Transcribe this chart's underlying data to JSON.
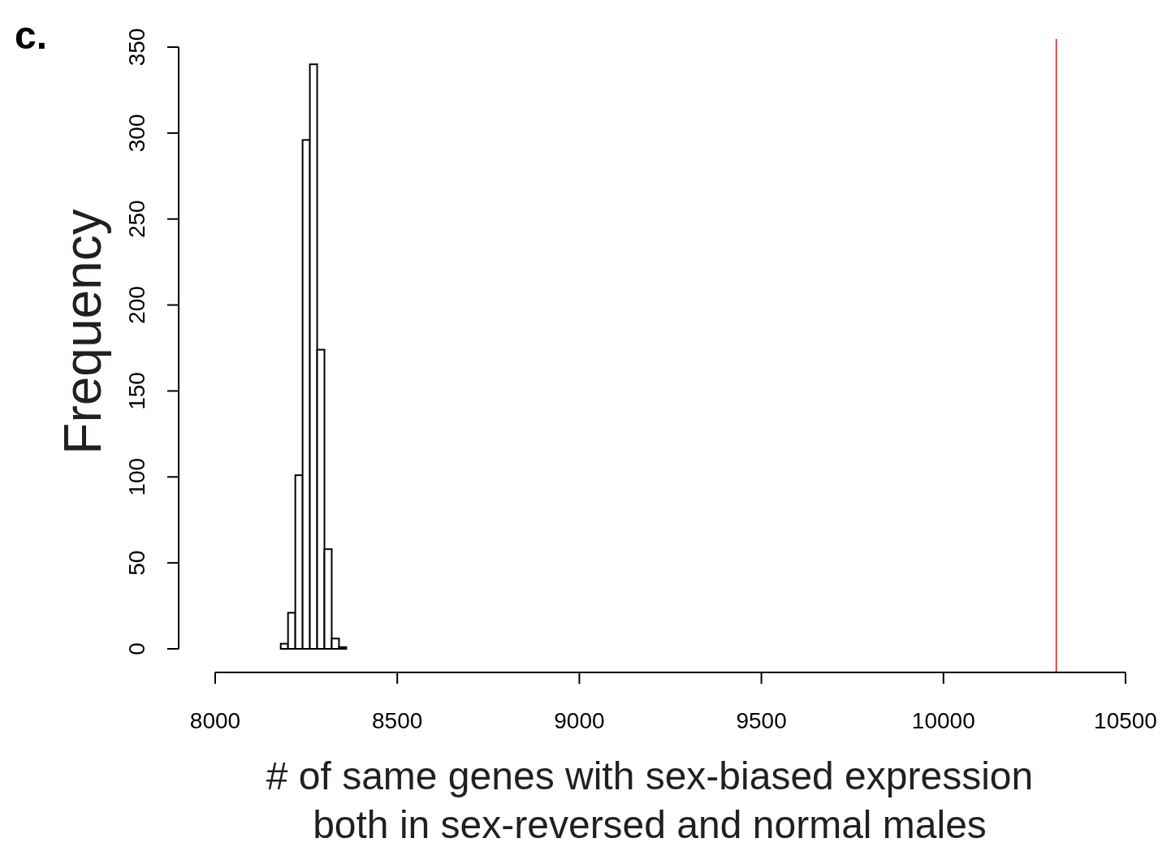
{
  "chart_data": {
    "type": "histogram",
    "title": "c.",
    "xlabel": "# of same genes with sex-biased expression\nboth in sex-reversed and normal males",
    "ylabel": "Frequency",
    "bins": [
      8180,
      8200,
      8220,
      8240,
      8260,
      8280,
      8300,
      8320,
      8340,
      8360
    ],
    "values": [
      3,
      21,
      101,
      296,
      340,
      174,
      58,
      6,
      1
    ],
    "color": "#ffffff",
    "xlim": [
      8000,
      10500
    ],
    "xticks": [
      8000,
      8500,
      9000,
      9500,
      10000,
      10500
    ],
    "ylim": [
      0,
      350
    ],
    "yticks": [
      0,
      50,
      100,
      150,
      200,
      250,
      300,
      350
    ],
    "ref_lines": [
      {
        "axis": "x",
        "value": 10310,
        "color": "#e8413a"
      }
    ],
    "grid": false
  }
}
